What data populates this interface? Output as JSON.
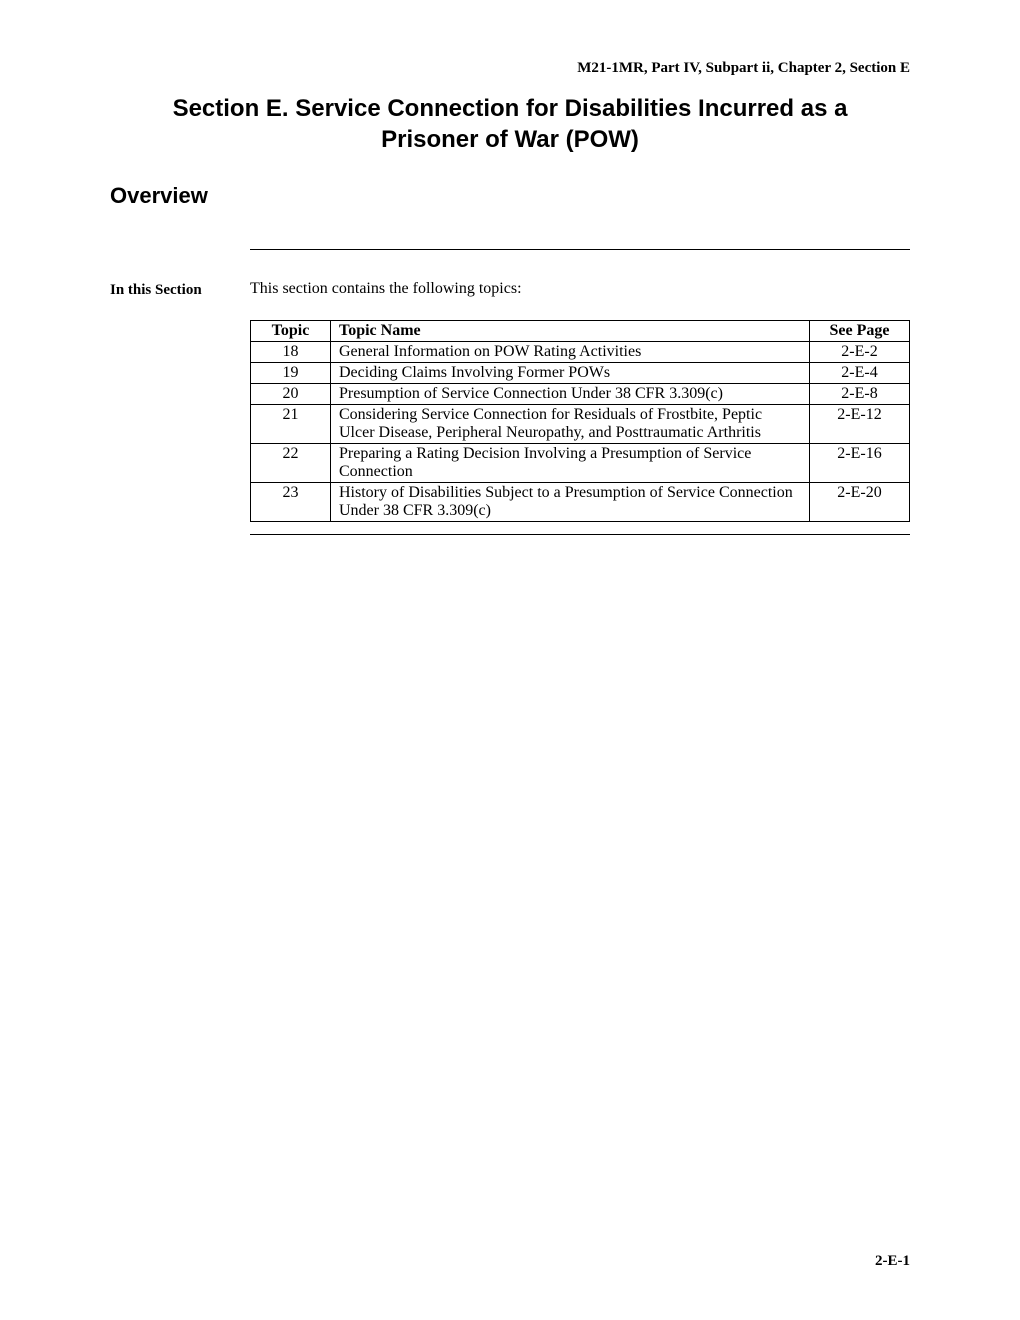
{
  "header": {
    "reference": "M21-1MR, Part IV, Subpart ii, Chapter 2, Section E"
  },
  "title": {
    "line1": "Section E.  Service Connection for Disabilities Incurred as a",
    "line2": "Prisoner of War (POW)"
  },
  "overview": {
    "heading": "Overview",
    "sideLabel": "In this Section",
    "introText": "This section contains the following topics:"
  },
  "table": {
    "headers": {
      "topic": "Topic",
      "topicName": "Topic Name",
      "seePage": "See Page"
    },
    "rows": [
      {
        "topic": "18",
        "name": "General Information on POW Rating Activities",
        "page": "2-E-2"
      },
      {
        "topic": "19",
        "name": "Deciding Claims Involving Former POWs",
        "page": "2-E-4"
      },
      {
        "topic": "20",
        "name": "Presumption of Service Connection Under 38 CFR 3.309(c)",
        "page": "2-E-8"
      },
      {
        "topic": "21",
        "name": "Considering Service Connection for Residuals of Frostbite, Peptic Ulcer Disease, Peripheral Neuropathy, and Posttraumatic Arthritis",
        "page": "2-E-12"
      },
      {
        "topic": "22",
        "name": "Preparing a Rating Decision Involving a Presumption of Service Connection",
        "page": "2-E-16"
      },
      {
        "topic": "23",
        "name": "History of Disabilities Subject to a Presumption of Service Connection Under 38 CFR 3.309(c)",
        "page": "2-E-20"
      }
    ]
  },
  "footer": {
    "pageNumber": "2-E-1"
  }
}
